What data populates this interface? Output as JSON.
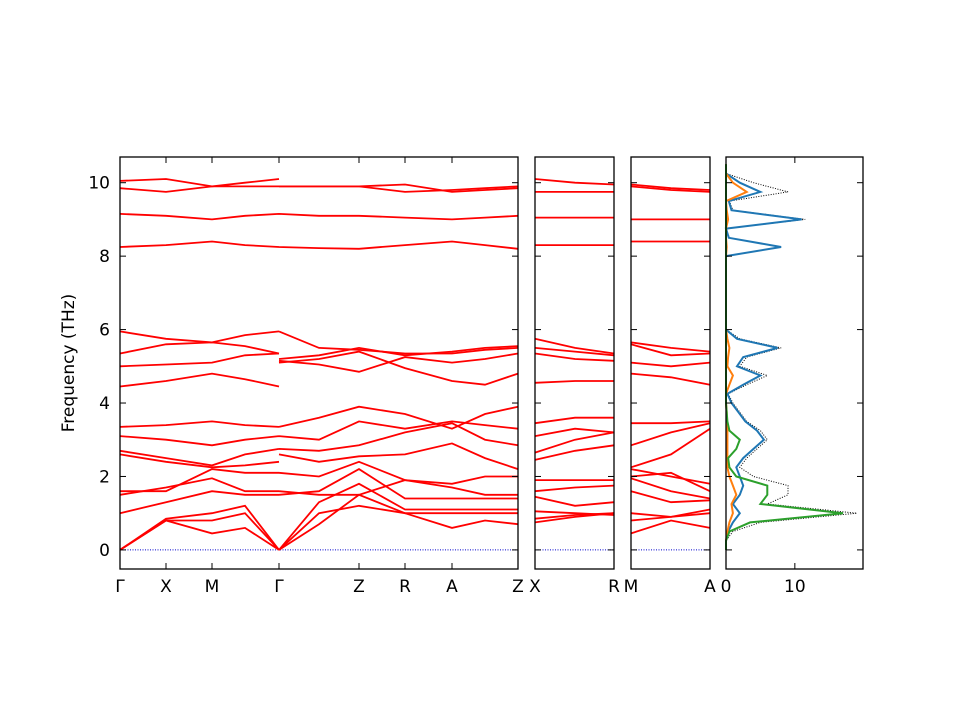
{
  "chart_data": [
    {
      "type": "band",
      "ylabel": "Frequency (THz)",
      "color": "#ff0000",
      "xlim": [
        0,
        3.98
      ],
      "ylim": [
        -0.52,
        10.7
      ],
      "yticks": [
        0,
        2,
        4,
        6,
        8,
        10
      ],
      "show_ytick_labels": true,
      "xticks": [
        {
          "value": 0,
          "label": "Γ"
        },
        {
          "value": 0.46,
          "label": "X"
        },
        {
          "value": 0.92,
          "label": "M"
        },
        {
          "value": 1.59,
          "label": "Γ"
        },
        {
          "value": 2.39,
          "label": "Z"
        },
        {
          "value": 2.85,
          "label": "R"
        },
        {
          "value": 3.32,
          "label": "A"
        },
        {
          "value": 3.98,
          "label": "Z"
        }
      ],
      "x": [
        0,
        0.46,
        0.92,
        1.25,
        1.59,
        1.59,
        1.59,
        1.99,
        2.39,
        2.85,
        3.32,
        3.65,
        3.98
      ],
      "series": [
        {
          "values": [
            0,
            0.8,
            0.45,
            0.6,
            0,
            null,
            0,
            0.7,
            1.5,
            1.0,
            0.6,
            0.8,
            0.7
          ]
        },
        {
          "values": [
            0,
            0.8,
            0.8,
            1.0,
            0,
            null,
            0,
            1.0,
            1.2,
            1.0,
            1.0,
            1.0,
            1.0
          ]
        },
        {
          "values": [
            0,
            0.85,
            1.0,
            1.2,
            0,
            null,
            0,
            1.3,
            1.8,
            1.1,
            1.1,
            1.1,
            1.1
          ]
        },
        {
          "values": [
            1.0,
            1.3,
            1.6,
            1.5,
            1.5,
            null,
            1.5,
            1.6,
            2.2,
            1.4,
            1.4,
            1.4,
            1.4
          ]
        },
        {
          "values": [
            1.5,
            1.7,
            1.95,
            1.6,
            1.6,
            null,
            1.6,
            1.5,
            1.5,
            1.9,
            1.7,
            1.5,
            1.5
          ]
        },
        {
          "values": [
            1.6,
            1.6,
            2.2,
            2.1,
            2.1,
            null,
            2.1,
            2.0,
            2.4,
            1.9,
            1.8,
            2.0,
            2.0
          ]
        },
        {
          "values": [
            2.6,
            2.4,
            2.25,
            2.3,
            2.4,
            null,
            2.6,
            2.4,
            2.55,
            2.6,
            2.9,
            2.5,
            2.2
          ]
        },
        {
          "values": [
            2.7,
            2.5,
            2.3,
            2.6,
            2.75,
            null,
            2.75,
            2.7,
            2.85,
            3.2,
            3.45,
            3.0,
            2.85
          ]
        },
        {
          "values": [
            3.1,
            3.0,
            2.85,
            3.0,
            3.1,
            null,
            3.1,
            3.0,
            3.5,
            3.3,
            3.5,
            3.4,
            3.3
          ]
        },
        {
          "values": [
            3.35,
            3.4,
            3.5,
            3.4,
            3.35,
            null,
            3.35,
            3.6,
            3.9,
            3.7,
            3.3,
            3.7,
            3.9
          ]
        },
        {
          "values": [
            4.45,
            4.6,
            4.8,
            4.65,
            4.45,
            null,
            5.1,
            5.2,
            5.4,
            4.95,
            4.6,
            4.5,
            4.8
          ]
        },
        {
          "values": [
            5.0,
            5.05,
            5.1,
            5.3,
            5.35,
            null,
            5.15,
            5.05,
            4.85,
            5.25,
            5.1,
            5.2,
            5.35
          ]
        },
        {
          "values": [
            5.35,
            5.6,
            5.65,
            5.55,
            5.35,
            null,
            5.95,
            5.5,
            5.45,
            5.35,
            5.35,
            5.45,
            5.5
          ]
        },
        {
          "values": [
            5.95,
            5.75,
            5.65,
            5.85,
            5.95,
            null,
            5.2,
            5.3,
            5.5,
            5.3,
            5.4,
            5.5,
            5.55
          ]
        },
        {
          "values": [
            8.25,
            8.3,
            8.4,
            8.3,
            8.25,
            null,
            8.25,
            8.22,
            8.2,
            8.3,
            8.4,
            8.3,
            8.2
          ]
        },
        {
          "values": [
            9.15,
            9.1,
            9.0,
            9.1,
            9.15,
            null,
            9.15,
            9.1,
            9.1,
            9.05,
            9.0,
            9.05,
            9.1
          ]
        },
        {
          "values": [
            9.85,
            9.75,
            9.9,
            9.9,
            9.9,
            null,
            9.9,
            9.9,
            9.9,
            9.75,
            9.8,
            9.85,
            9.9
          ]
        },
        {
          "values": [
            10.05,
            10.1,
            9.9,
            10.0,
            10.1,
            null,
            9.9,
            9.9,
            9.9,
            9.95,
            9.75,
            9.8,
            9.85
          ]
        }
      ]
    },
    {
      "type": "band",
      "color": "#ff0000",
      "xlim": [
        0,
        0.79
      ],
      "ylim": [
        -0.52,
        10.7
      ],
      "yticks": [
        0,
        2,
        4,
        6,
        8,
        10
      ],
      "show_ytick_labels": false,
      "xticks": [
        {
          "value": 0,
          "label": "X"
        },
        {
          "value": 0.79,
          "label": "R"
        }
      ],
      "x": [
        0,
        0.4,
        0.79
      ],
      "series": [
        {
          "values": [
            0.75,
            0.9,
            1.0
          ]
        },
        {
          "values": [
            0.85,
            0.95,
            1.0
          ]
        },
        {
          "values": [
            1.05,
            1.0,
            0.95
          ]
        },
        {
          "values": [
            1.45,
            1.2,
            1.3
          ]
        },
        {
          "values": [
            1.6,
            1.7,
            1.75
          ]
        },
        {
          "values": [
            1.9,
            1.9,
            1.9
          ]
        },
        {
          "values": [
            2.45,
            2.7,
            2.85
          ]
        },
        {
          "values": [
            2.65,
            3.0,
            3.2
          ]
        },
        {
          "values": [
            3.1,
            3.3,
            3.2
          ]
        },
        {
          "values": [
            3.45,
            3.6,
            3.6
          ]
        },
        {
          "values": [
            4.55,
            4.6,
            4.6
          ]
        },
        {
          "values": [
            5.35,
            5.2,
            5.15
          ]
        },
        {
          "values": [
            5.5,
            5.4,
            5.3
          ]
        },
        {
          "values": [
            5.75,
            5.5,
            5.35
          ]
        },
        {
          "values": [
            8.3,
            8.3,
            8.3
          ]
        },
        {
          "values": [
            9.05,
            9.05,
            9.05
          ]
        },
        {
          "values": [
            9.75,
            9.75,
            9.75
          ]
        },
        {
          "values": [
            10.1,
            10.0,
            9.95
          ]
        }
      ]
    },
    {
      "type": "band",
      "color": "#ff0000",
      "xlim": [
        0,
        0.79
      ],
      "ylim": [
        -0.52,
        10.7
      ],
      "yticks": [
        0,
        2,
        4,
        6,
        8,
        10
      ],
      "show_ytick_labels": false,
      "xticks": [
        {
          "value": 0,
          "label": "M"
        },
        {
          "value": 0.79,
          "label": "A"
        }
      ],
      "x": [
        0,
        0.4,
        0.79
      ],
      "series": [
        {
          "values": [
            0.45,
            0.8,
            0.6
          ]
        },
        {
          "values": [
            0.8,
            0.9,
            1.0
          ]
        },
        {
          "values": [
            1.0,
            0.9,
            1.1
          ]
        },
        {
          "values": [
            1.6,
            1.3,
            1.35
          ]
        },
        {
          "values": [
            1.95,
            1.6,
            1.4
          ]
        },
        {
          "values": [
            2.2,
            2.0,
            1.8
          ]
        },
        {
          "values": [
            2.0,
            2.1,
            1.6
          ]
        },
        {
          "values": [
            2.25,
            2.6,
            3.3
          ]
        },
        {
          "values": [
            2.85,
            3.2,
            3.45
          ]
        },
        {
          "values": [
            3.45,
            3.45,
            3.5
          ]
        },
        {
          "values": [
            4.8,
            4.7,
            4.5
          ]
        },
        {
          "values": [
            5.1,
            5.0,
            5.1
          ]
        },
        {
          "values": [
            5.6,
            5.3,
            5.35
          ]
        },
        {
          "values": [
            5.65,
            5.5,
            5.4
          ]
        },
        {
          "values": [
            8.4,
            8.4,
            8.4
          ]
        },
        {
          "values": [
            9.0,
            9.0,
            9.0
          ]
        },
        {
          "values": [
            9.9,
            9.8,
            9.75
          ]
        },
        {
          "values": [
            9.95,
            9.85,
            9.8
          ]
        }
      ]
    },
    {
      "type": "dos",
      "xlim": [
        0,
        19.9
      ],
      "xticks": [
        0,
        10
      ],
      "ylim": [
        -0.52,
        10.7
      ],
      "yticks": [
        0,
        2,
        4,
        6,
        8,
        10
      ],
      "show_ytick_labels": false,
      "y": [
        0,
        0.25,
        0.5,
        0.75,
        1,
        1.25,
        1.5,
        1.75,
        2,
        2.25,
        2.5,
        2.75,
        3,
        3.25,
        3.5,
        3.75,
        4,
        4.25,
        4.5,
        4.75,
        5,
        5.25,
        5.5,
        5.75,
        6,
        6.25,
        6.5,
        6.75,
        7,
        7.25,
        7.5,
        7.75,
        8,
        8.25,
        8.5,
        8.75,
        9,
        9.25,
        9.5,
        9.75,
        10,
        10.25,
        10.5
      ],
      "series": [
        {
          "color": "#000000",
          "style": "dotted",
          "values": [
            0,
            0,
            1,
            5,
            19,
            6,
            9,
            9,
            4,
            2,
            3,
            4.5,
            6,
            5,
            3,
            2,
            1,
            0.3,
            3,
            6,
            2,
            3,
            8,
            2,
            0,
            0,
            0,
            0,
            0,
            0,
            0,
            0,
            0,
            8,
            0.5,
            0,
            11.5,
            1,
            0.5,
            9,
            4,
            0,
            0
          ]
        },
        {
          "color": "#1f77b4",
          "style": "solid",
          "values": [
            0,
            0,
            0.3,
            1,
            2,
            1,
            2,
            2.5,
            2,
            1.5,
            2.5,
            4,
            5.5,
            4.5,
            2.8,
            1.8,
            0.8,
            0.2,
            2.5,
            5,
            1.6,
            2.5,
            7.5,
            1.6,
            0,
            0,
            0,
            0,
            0,
            0,
            0,
            0,
            0,
            8,
            0.4,
            0,
            11,
            0.8,
            0.4,
            5,
            2,
            0,
            0
          ]
        },
        {
          "color": "#ff7f0e",
          "style": "solid",
          "values": [
            0,
            0,
            0.2,
            0.5,
            1,
            0.8,
            1.5,
            1,
            0.5,
            0.2,
            0.2,
            0.2,
            0.2,
            0.2,
            0.1,
            0.1,
            0,
            0,
            0.5,
            1,
            0.2,
            0.3,
            0.5,
            0.2,
            0,
            0,
            0,
            0,
            0,
            0,
            0,
            0,
            0,
            0.1,
            0,
            0,
            0.3,
            0.1,
            0,
            3,
            1,
            0,
            0
          ]
        },
        {
          "color": "#2ca02c",
          "style": "solid",
          "values": [
            0,
            0,
            0.5,
            3.5,
            17,
            5,
            6,
            6,
            1.5,
            0.5,
            0.3,
            1.5,
            2,
            0.5,
            0.2,
            0.1,
            0,
            0,
            0,
            0,
            0,
            0,
            0,
            0,
            0,
            0,
            0,
            0,
            0,
            0,
            0,
            0,
            0,
            0,
            0,
            0,
            0,
            0,
            0,
            0,
            0,
            0,
            0
          ]
        }
      ]
    }
  ]
}
